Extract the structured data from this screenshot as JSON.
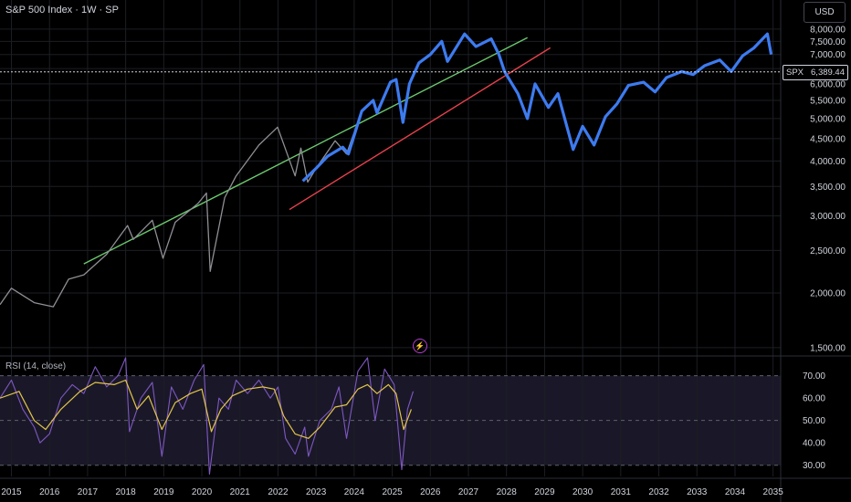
{
  "header": {
    "title": "S&P 500 Index · 1W · SP",
    "currency": "USD"
  },
  "price_tag": {
    "symbol": "SPX",
    "value": "6,389.44"
  },
  "rsi_label": "RSI (14, close)",
  "colors": {
    "historical": "#8f8f95",
    "projection": "#3d7bf0",
    "upper_trend": "#6cc96f",
    "lower_trend": "#e8414d",
    "rsi_line": "#7e57c2",
    "rsi_ma": "#e2c44a",
    "grid": "#1c1e24",
    "rsi_band": "#1f1c2f",
    "flash_icon": "#b23ecf"
  },
  "icons": {
    "event": "flash-icon"
  },
  "chart_data": [
    {
      "type": "line",
      "title": "S&P 500 Index · 1W · SP",
      "price_scale": "log",
      "y_range": [
        1450,
        8150
      ],
      "x_range": [
        2014.7,
        2035.2
      ],
      "x_ticks": [
        "2015",
        "2016",
        "2017",
        "2018",
        "2019",
        "2020",
        "2021",
        "2022",
        "2023",
        "2024",
        "2025",
        "2026",
        "2027",
        "2028",
        "2029",
        "2030",
        "2031",
        "2032",
        "2033",
        "2034",
        "2035"
      ],
      "y_ticks": [
        {
          "v": 1500,
          "label": "1,500.00"
        },
        {
          "v": 2000,
          "label": "2,000.00"
        },
        {
          "v": 2500,
          "label": "2,500.00"
        },
        {
          "v": 3000,
          "label": "3,000.00"
        },
        {
          "v": 3500,
          "label": "3,500.00"
        },
        {
          "v": 4000,
          "label": "4,000.00"
        },
        {
          "v": 4500,
          "label": "4,500.00"
        },
        {
          "v": 5000,
          "label": "5,000.00"
        },
        {
          "v": 5500,
          "label": "5,500.00"
        },
        {
          "v": 6000,
          "label": "6,000.00"
        },
        {
          "v": 6500,
          "label": "6,500.00"
        },
        {
          "v": 7000,
          "label": "7,000.00"
        },
        {
          "v": 7500,
          "label": "7,500.00"
        },
        {
          "v": 8000,
          "label": "8,000.00"
        }
      ],
      "current_price": 6389.44,
      "series": [
        {
          "role": "historical",
          "points": [
            [
              2014.7,
              1880
            ],
            [
              2015.0,
              2050
            ],
            [
              2015.6,
              1900
            ],
            [
              2016.1,
              1860
            ],
            [
              2016.5,
              2150
            ],
            [
              2016.9,
              2200
            ],
            [
              2017.5,
              2450
            ],
            [
              2018.05,
              2850
            ],
            [
              2018.2,
              2650
            ],
            [
              2018.7,
              2930
            ],
            [
              2018.98,
              2400
            ],
            [
              2019.3,
              2900
            ],
            [
              2019.9,
              3200
            ],
            [
              2020.12,
              3380
            ],
            [
              2020.22,
              2240
            ],
            [
              2020.6,
              3300
            ],
            [
              2020.9,
              3700
            ],
            [
              2021.5,
              4350
            ],
            [
              2021.99,
              4780
            ],
            [
              2022.45,
              3700
            ],
            [
              2022.6,
              4280
            ],
            [
              2022.78,
              3580
            ],
            [
              2023.0,
              3850
            ],
            [
              2023.5,
              4450
            ],
            [
              2023.8,
              4150
            ],
            [
              2024.2,
              5200
            ],
            [
              2024.5,
              5500
            ],
            [
              2024.6,
              5150
            ],
            [
              2024.95,
              6050
            ],
            [
              2025.1,
              6140
            ],
            [
              2025.28,
              4980
            ],
            [
              2025.5,
              6200
            ]
          ]
        },
        {
          "role": "projection",
          "points": [
            [
              2022.65,
              3600
            ],
            [
              2023.0,
              3850
            ],
            [
              2023.3,
              4100
            ],
            [
              2023.7,
              4300
            ],
            [
              2023.85,
              4150
            ],
            [
              2024.2,
              5200
            ],
            [
              2024.5,
              5500
            ],
            [
              2024.6,
              5150
            ],
            [
              2024.95,
              6050
            ],
            [
              2025.1,
              6140
            ],
            [
              2025.28,
              4900
            ],
            [
              2025.45,
              6000
            ],
            [
              2025.7,
              6700
            ],
            [
              2026.0,
              7000
            ],
            [
              2026.3,
              7500
            ],
            [
              2026.45,
              6750
            ],
            [
              2026.9,
              7800
            ],
            [
              2027.2,
              7300
            ],
            [
              2027.6,
              7600
            ],
            [
              2027.8,
              7000
            ],
            [
              2027.95,
              6400
            ],
            [
              2028.3,
              5700
            ],
            [
              2028.55,
              5000
            ],
            [
              2028.75,
              6000
            ],
            [
              2029.1,
              5300
            ],
            [
              2029.35,
              5700
            ],
            [
              2029.75,
              4250
            ],
            [
              2030.0,
              4800
            ],
            [
              2030.3,
              4350
            ],
            [
              2030.6,
              5050
            ],
            [
              2030.9,
              5400
            ],
            [
              2031.2,
              5950
            ],
            [
              2031.6,
              6050
            ],
            [
              2031.9,
              5750
            ],
            [
              2032.2,
              6200
            ],
            [
              2032.6,
              6400
            ],
            [
              2032.9,
              6300
            ],
            [
              2033.2,
              6600
            ],
            [
              2033.6,
              6800
            ],
            [
              2033.9,
              6400
            ],
            [
              2034.2,
              6950
            ],
            [
              2034.5,
              7250
            ],
            [
              2034.85,
              7800
            ],
            [
              2034.95,
              7000
            ]
          ]
        }
      ],
      "trendlines": [
        {
          "name": "upper",
          "from": [
            2016.9,
            2330
          ],
          "to": [
            2028.55,
            7650
          ]
        },
        {
          "name": "lower",
          "from": [
            2022.3,
            3100
          ],
          "to": [
            2029.15,
            7250
          ]
        }
      ]
    },
    {
      "type": "line",
      "title": "RSI (14, close)",
      "y_range": [
        25,
        78
      ],
      "y_ticks": [
        {
          "v": 30,
          "label": "30.00"
        },
        {
          "v": 40,
          "label": "40.00"
        },
        {
          "v": 50,
          "label": "50.00"
        },
        {
          "v": 60,
          "label": "60.00"
        },
        {
          "v": 70,
          "label": "70.00"
        }
      ],
      "bands": [
        30,
        50,
        70
      ],
      "series": [
        {
          "name": "RSI",
          "role": "rsi",
          "points": [
            [
              2014.7,
              60
            ],
            [
              2015.0,
              68
            ],
            [
              2015.3,
              55
            ],
            [
              2015.6,
              47
            ],
            [
              2015.75,
              40
            ],
            [
              2016.0,
              44
            ],
            [
              2016.3,
              60
            ],
            [
              2016.6,
              66
            ],
            [
              2016.9,
              62
            ],
            [
              2017.2,
              74
            ],
            [
              2017.5,
              65
            ],
            [
              2017.8,
              70
            ],
            [
              2018.0,
              78
            ],
            [
              2018.1,
              45
            ],
            [
              2018.4,
              60
            ],
            [
              2018.7,
              67
            ],
            [
              2018.95,
              34
            ],
            [
              2019.2,
              65
            ],
            [
              2019.5,
              55
            ],
            [
              2019.8,
              68
            ],
            [
              2020.05,
              75
            ],
            [
              2020.2,
              26
            ],
            [
              2020.45,
              60
            ],
            [
              2020.7,
              55
            ],
            [
              2020.9,
              68
            ],
            [
              2021.2,
              62
            ],
            [
              2021.5,
              68
            ],
            [
              2021.8,
              60
            ],
            [
              2022.0,
              65
            ],
            [
              2022.2,
              42
            ],
            [
              2022.45,
              35
            ],
            [
              2022.7,
              47
            ],
            [
              2022.8,
              34
            ],
            [
              2023.1,
              50
            ],
            [
              2023.4,
              55
            ],
            [
              2023.6,
              65
            ],
            [
              2023.8,
              42
            ],
            [
              2024.1,
              72
            ],
            [
              2024.35,
              78
            ],
            [
              2024.55,
              50
            ],
            [
              2024.8,
              73
            ],
            [
              2025.05,
              66
            ],
            [
              2025.25,
              28
            ],
            [
              2025.4,
              55
            ],
            [
              2025.55,
              63
            ]
          ]
        },
        {
          "name": "RSI MA",
          "role": "rsi_ma",
          "points": [
            [
              2014.7,
              60
            ],
            [
              2015.2,
              63
            ],
            [
              2015.6,
              50
            ],
            [
              2015.9,
              46
            ],
            [
              2016.3,
              55
            ],
            [
              2016.8,
              63
            ],
            [
              2017.2,
              67
            ],
            [
              2017.7,
              66
            ],
            [
              2018.0,
              68
            ],
            [
              2018.3,
              55
            ],
            [
              2018.6,
              61
            ],
            [
              2018.95,
              46
            ],
            [
              2019.3,
              58
            ],
            [
              2019.7,
              62
            ],
            [
              2020.0,
              64
            ],
            [
              2020.25,
              45
            ],
            [
              2020.5,
              55
            ],
            [
              2020.8,
              61
            ],
            [
              2021.2,
              64
            ],
            [
              2021.6,
              65
            ],
            [
              2021.9,
              64
            ],
            [
              2022.15,
              52
            ],
            [
              2022.45,
              44
            ],
            [
              2022.8,
              42
            ],
            [
              2023.1,
              47
            ],
            [
              2023.5,
              56
            ],
            [
              2023.8,
              57
            ],
            [
              2024.1,
              64
            ],
            [
              2024.35,
              66
            ],
            [
              2024.6,
              62
            ],
            [
              2024.9,
              66
            ],
            [
              2025.1,
              62
            ],
            [
              2025.3,
              46
            ],
            [
              2025.5,
              55
            ]
          ]
        }
      ]
    }
  ]
}
